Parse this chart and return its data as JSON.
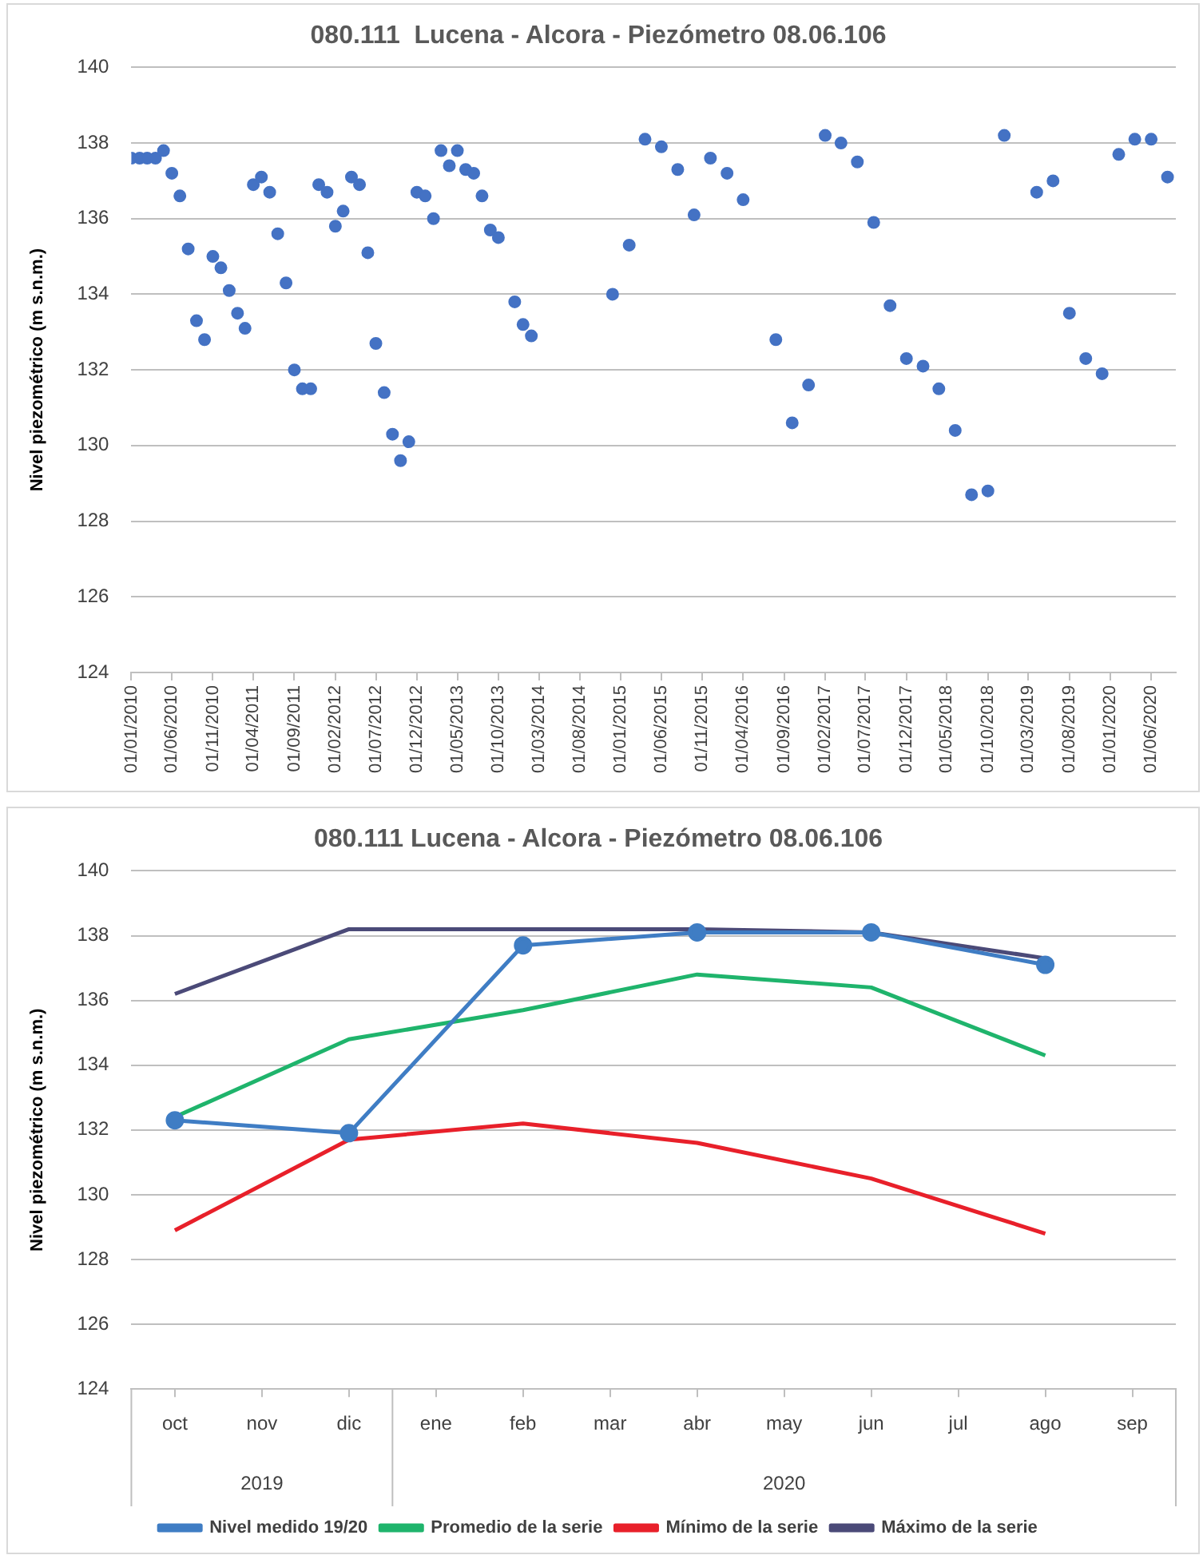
{
  "chart_data": [
    {
      "type": "scatter",
      "title": "080.111  Lucena - Alcora - Piezómetro 08.06.106",
      "ylabel": "Nivel piezométrico (m s.n.m.)",
      "marker": "circle",
      "grid": "y",
      "legend": false,
      "xlim": [
        "2010-01-01",
        "2020-09-01"
      ],
      "xticks": [
        {
          "value": "2010-01-01",
          "label": "01/01/2010"
        },
        {
          "value": "2010-06-01",
          "label": "01/06/2010"
        },
        {
          "value": "2010-11-01",
          "label": "01/11/2010"
        },
        {
          "value": "2011-04-01",
          "label": "01/04/2011"
        },
        {
          "value": "2011-09-01",
          "label": "01/09/2011"
        },
        {
          "value": "2012-02-01",
          "label": "01/02/2012"
        },
        {
          "value": "2012-07-01",
          "label": "01/07/2012"
        },
        {
          "value": "2012-12-01",
          "label": "01/12/2012"
        },
        {
          "value": "2013-05-01",
          "label": "01/05/2013"
        },
        {
          "value": "2013-10-01",
          "label": "01/10/2013"
        },
        {
          "value": "2014-03-01",
          "label": "01/03/2014"
        },
        {
          "value": "2014-08-01",
          "label": "01/08/2014"
        },
        {
          "value": "2015-01-01",
          "label": "01/01/2015"
        },
        {
          "value": "2015-06-01",
          "label": "01/06/2015"
        },
        {
          "value": "2015-11-01",
          "label": "01/11/2015"
        },
        {
          "value": "2016-04-01",
          "label": "01/04/2016"
        },
        {
          "value": "2016-09-01",
          "label": "01/09/2016"
        },
        {
          "value": "2017-02-01",
          "label": "01/02/2017"
        },
        {
          "value": "2017-07-01",
          "label": "01/07/2017"
        },
        {
          "value": "2017-12-01",
          "label": "01/12/2017"
        },
        {
          "value": "2018-05-01",
          "label": "01/05/2018"
        },
        {
          "value": "2018-10-01",
          "label": "01/10/2018"
        },
        {
          "value": "2019-03-01",
          "label": "01/03/2019"
        },
        {
          "value": "2019-08-01",
          "label": "01/08/2019"
        },
        {
          "value": "2020-01-01",
          "label": "01/01/2020"
        },
        {
          "value": "2020-06-01",
          "label": "01/06/2020"
        }
      ],
      "ylim": [
        124,
        140
      ],
      "yticks": [
        124,
        126,
        128,
        130,
        132,
        134,
        136,
        138,
        140
      ],
      "x": [
        "2010-01",
        "2010-02",
        "2010-03",
        "2010-04",
        "2010-05",
        "2010-06",
        "2010-07",
        "2010-08",
        "2010-09",
        "2010-10",
        "2010-11",
        "2010-12",
        "2011-01",
        "2011-02",
        "2011-03",
        "2011-04",
        "2011-05",
        "2011-06",
        "2011-07",
        "2011-08",
        "2011-09",
        "2011-10",
        "2011-11",
        "2011-12",
        "2012-01",
        "2012-02",
        "2012-03",
        "2012-04",
        "2012-05",
        "2012-06",
        "2012-07",
        "2012-08",
        "2012-09",
        "2012-10",
        "2012-11",
        "2012-12",
        "2013-01",
        "2013-02",
        "2013-03",
        "2013-04",
        "2013-05",
        "2013-06",
        "2013-07",
        "2013-08",
        "2013-09",
        "2013-10",
        "2013-12",
        "2014-01",
        "2014-02",
        "2014-12",
        "2015-02",
        "2015-04",
        "2015-06",
        "2015-08",
        "2015-10",
        "2015-12",
        "2016-02",
        "2016-04",
        "2016-08",
        "2016-10",
        "2016-12",
        "2017-02",
        "2017-04",
        "2017-06",
        "2017-08",
        "2017-10",
        "2017-12",
        "2018-02",
        "2018-04",
        "2018-06",
        "2018-08",
        "2018-10",
        "2018-12",
        "2019-04",
        "2019-06",
        "2019-08",
        "2019-10",
        "2019-12",
        "2020-02",
        "2020-04",
        "2020-06",
        "2020-08"
      ],
      "series": [
        {
          "color": "#4472c4",
          "values": [
            137.6,
            137.6,
            137.6,
            137.6,
            137.8,
            137.2,
            136.6,
            135.2,
            133.3,
            132.8,
            135.0,
            134.7,
            134.1,
            133.5,
            133.1,
            136.9,
            137.1,
            136.7,
            135.6,
            134.3,
            132.0,
            131.5,
            131.5,
            136.9,
            136.7,
            135.8,
            136.2,
            137.1,
            136.9,
            135.1,
            132.7,
            131.4,
            130.3,
            129.6,
            130.1,
            136.7,
            136.6,
            136.0,
            137.8,
            137.4,
            137.8,
            137.3,
            137.2,
            136.6,
            135.7,
            135.5,
            133.8,
            133.2,
            132.9,
            134.0,
            135.3,
            138.1,
            137.9,
            137.3,
            136.1,
            137.6,
            137.2,
            136.5,
            132.8,
            130.6,
            131.6,
            138.2,
            138.0,
            137.5,
            135.9,
            133.7,
            132.3,
            132.1,
            131.5,
            130.4,
            128.7,
            128.8,
            138.2,
            136.7,
            137.0,
            133.5,
            132.3,
            131.9,
            137.7,
            138.1,
            138.1,
            137.1
          ]
        }
      ]
    },
    {
      "type": "line",
      "title": "080.111 Lucena - Alcora - Piezómetro 08.06.106",
      "ylabel": "Nivel piezométrico (m s.n.m.)",
      "grid": "y",
      "legend": "bottom",
      "line_style": "solid",
      "categories": [
        "oct",
        "nov",
        "dic",
        "ene",
        "feb",
        "mar",
        "abr",
        "may",
        "jun",
        "jul",
        "ago",
        "sep"
      ],
      "annotations": [
        "2019",
        "2020"
      ],
      "ylim": [
        124,
        140
      ],
      "yticks": [
        124,
        126,
        128,
        130,
        132,
        134,
        136,
        138,
        140
      ],
      "series": [
        {
          "name": "Nivel medido 19/20",
          "color": "#3f7dc4",
          "marker": "circle",
          "values": [
            132.3,
            null,
            131.9,
            null,
            137.7,
            null,
            138.1,
            null,
            138.1,
            null,
            137.1,
            null
          ]
        },
        {
          "name": "Promedio de la serie",
          "color": "#1fb46c",
          "marker": "none",
          "values": [
            132.4,
            null,
            134.8,
            null,
            135.7,
            null,
            136.8,
            null,
            136.4,
            null,
            134.3,
            null
          ]
        },
        {
          "name": "Mínimo de la serie",
          "color": "#e8202a",
          "marker": "none",
          "values": [
            128.9,
            null,
            131.7,
            null,
            132.2,
            null,
            131.6,
            null,
            130.5,
            null,
            128.8,
            null
          ]
        },
        {
          "name": "Máximo de la serie",
          "color": "#4b4a78",
          "marker": "none",
          "values": [
            136.2,
            null,
            138.2,
            null,
            138.2,
            null,
            138.2,
            null,
            138.1,
            null,
            137.3,
            null
          ]
        }
      ]
    }
  ]
}
